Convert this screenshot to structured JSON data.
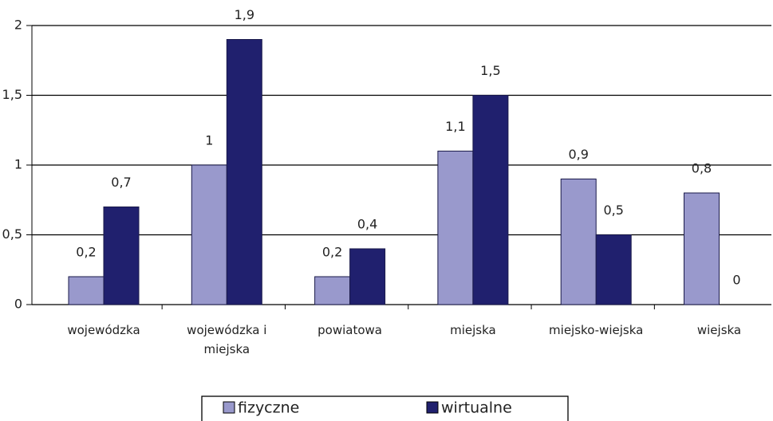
{
  "chart_data": {
    "type": "bar",
    "categories": [
      "wojewódzka",
      "wojewódzka i miejska",
      "powiatowa",
      "miejska",
      "miejsko-wiejska",
      "wiejska"
    ],
    "series": [
      {
        "name": "fizyczne",
        "color": "#9999cc",
        "values": [
          0.2,
          1,
          0.2,
          1.1,
          0.9,
          0.8
        ],
        "value_labels": [
          "0,2",
          "1",
          "0,2",
          "1,1",
          "0,9",
          "0,8"
        ]
      },
      {
        "name": "wirtualne",
        "color": "#20206e",
        "values": [
          0.7,
          1.9,
          0.4,
          1.5,
          0.5,
          0
        ],
        "value_labels": [
          "0,7",
          "1,9",
          "0,4",
          "1,5",
          "0,5",
          "0"
        ]
      }
    ],
    "ylim": [
      0,
      2
    ],
    "yticks": [
      0,
      {
        "value": 0.5,
        "label": "0,5"
      },
      1,
      {
        "value": 1.5,
        "label": "1,5"
      },
      2
    ],
    "grid": true,
    "legend": "bottom"
  }
}
